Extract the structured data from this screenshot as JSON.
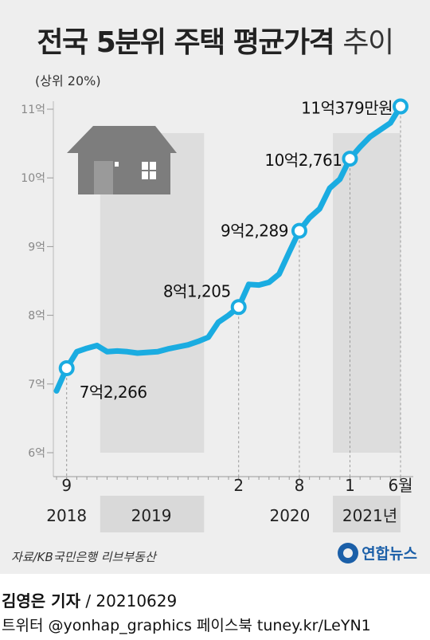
{
  "title": {
    "bold": "전국 5분위 주택 평균가격",
    "light": "추이"
  },
  "subtitle": "(상위 20%)",
  "source": "자료/KB국민은행 리브부동산",
  "logo": {
    "text": "연합뉴스",
    "icon": "yonhap-logo-icon"
  },
  "byline": {
    "reporter": "김영은 기자",
    "date": " / 20210629"
  },
  "social": "트위터 @yonhap_graphics  페이스북 tuney.kr/LeYN1",
  "colors": {
    "line": "#1aace1",
    "shade": "#d6d6d6",
    "background": "#eeeeee",
    "house": "#7d7d7d"
  },
  "chart_data": {
    "type": "line",
    "title": "전국 5분위 주택 평균가격 추이",
    "subtitle": "(상위 20%)",
    "unit": "억 원",
    "ylim": [
      6,
      11
    ],
    "ytick_labels": [
      "6억",
      "7억",
      "8억",
      "9억",
      "10억",
      "11억"
    ],
    "yticks": [
      6,
      7,
      8,
      9,
      10,
      11
    ],
    "x_tick_labels": [
      "9",
      "2",
      "8",
      "1",
      "6월"
    ],
    "x_tick_index": [
      1,
      18,
      24,
      29,
      34
    ],
    "year_labels": [
      "2018",
      "2019",
      "2020",
      "2021년"
    ],
    "shaded_periods": [
      "2019",
      "2021"
    ],
    "series": [
      {
        "values": [
          6.9,
          7.23,
          7.47,
          7.52,
          7.56,
          7.47,
          7.48,
          7.47,
          7.45,
          7.46,
          7.47,
          7.51,
          7.54,
          7.57,
          7.62,
          7.68,
          7.9,
          8.0,
          8.12,
          8.45,
          8.44,
          8.48,
          8.6,
          8.92,
          9.23,
          9.42,
          9.55,
          9.85,
          9.98,
          10.28,
          10.45,
          10.6,
          10.7,
          10.8,
          11.04
        ]
      }
    ],
    "annotations": [
      {
        "index": 1,
        "label": "7억2,266"
      },
      {
        "index": 18,
        "label": "8억1,205"
      },
      {
        "index": 24,
        "label": "9억2,289"
      },
      {
        "index": 29,
        "label": "10억2,761"
      },
      {
        "index": 34,
        "label": "11억379만원"
      }
    ]
  }
}
